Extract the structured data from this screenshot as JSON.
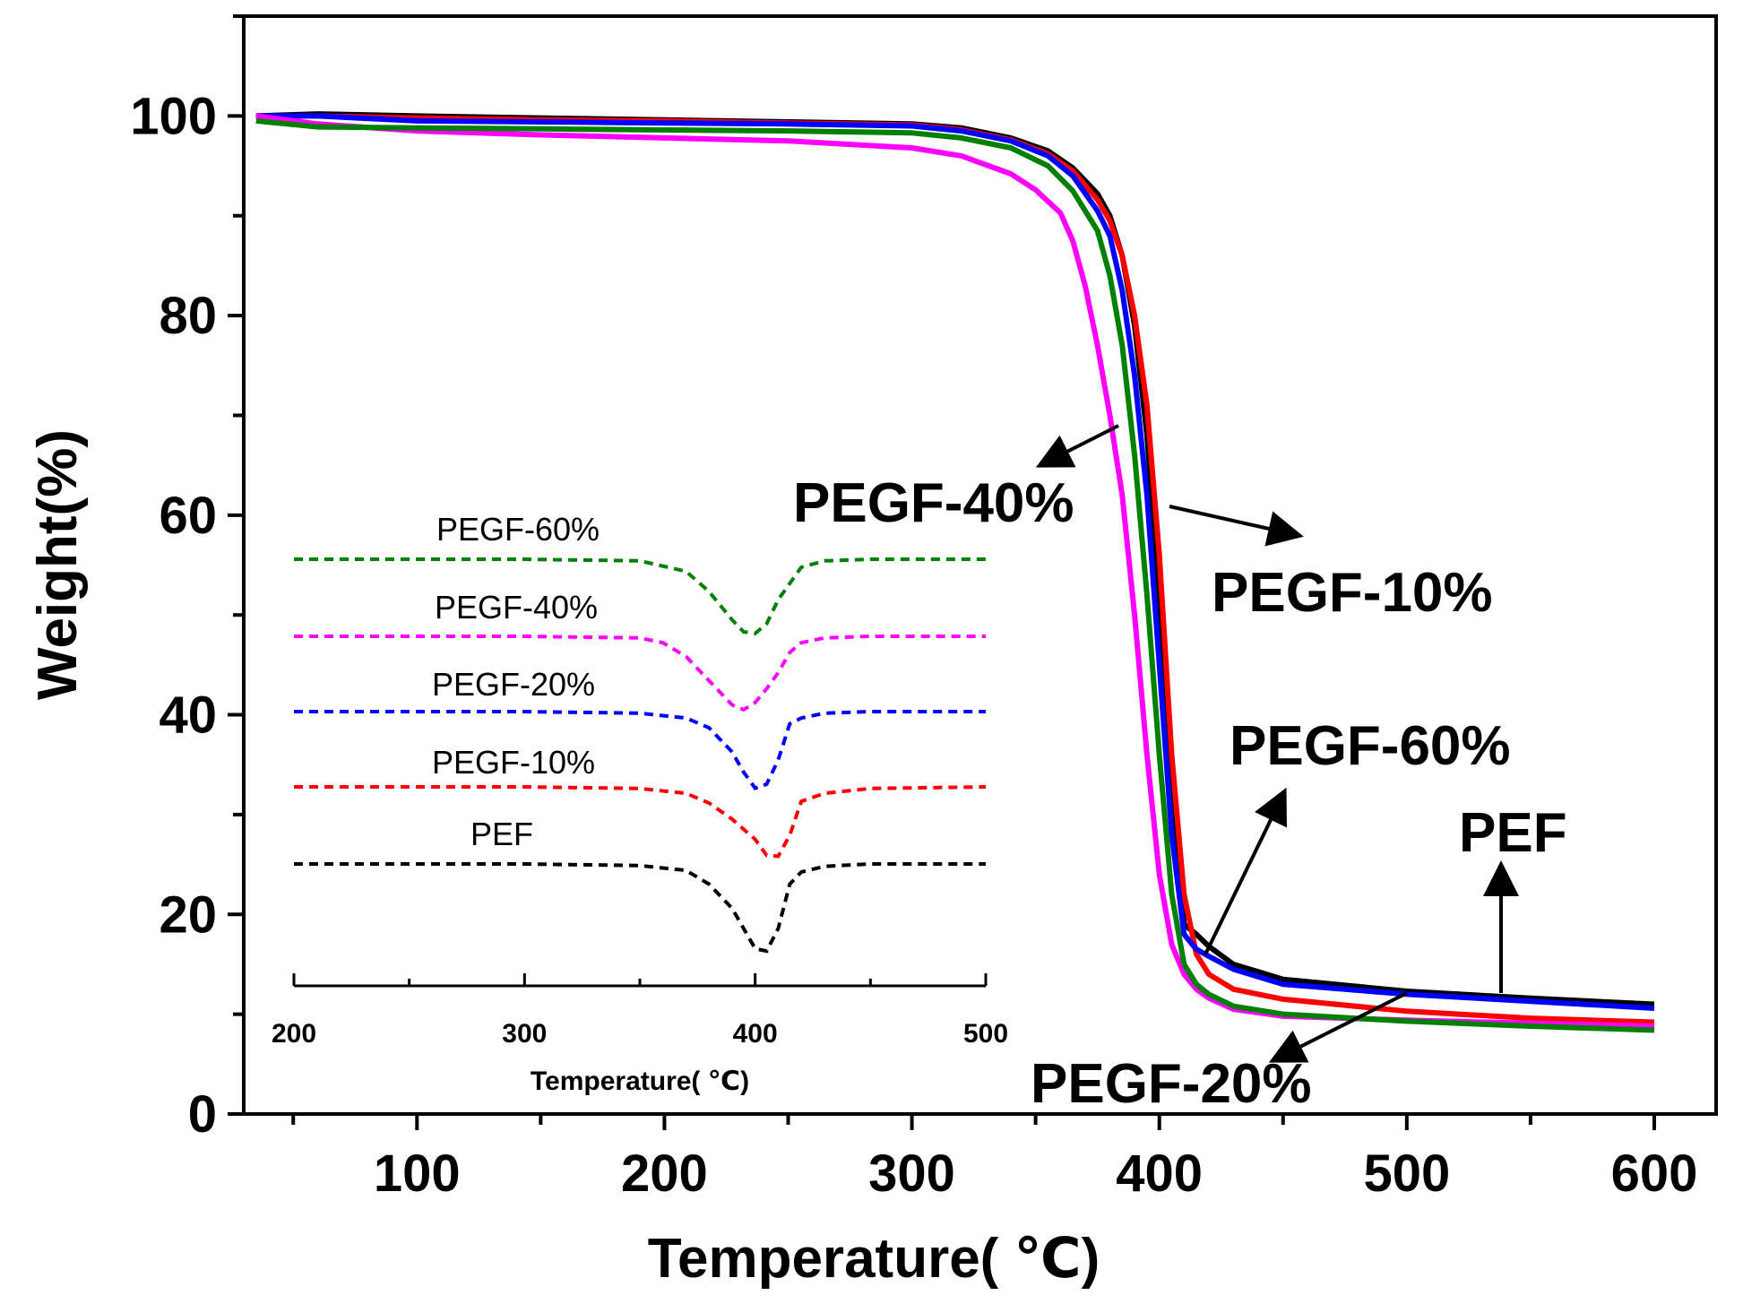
{
  "chart_data": [
    {
      "type": "line",
      "title": "",
      "xlabel": "Temperature(  ℃)",
      "ylabel": "Weight(%)",
      "xlim": [
        30,
        625
      ],
      "ylim": [
        0,
        110
      ],
      "xticks": [
        100,
        200,
        300,
        400,
        500,
        600
      ],
      "yticks": [
        0,
        20,
        40,
        60,
        80,
        100
      ],
      "grid": false,
      "series": [
        {
          "name": "PEF",
          "color": "#000000",
          "x": [
            35,
            60,
            100,
            150,
            200,
            250,
            300,
            320,
            340,
            355,
            365,
            375,
            380,
            385,
            390,
            395,
            400,
            405,
            410,
            415,
            420,
            430,
            450,
            500,
            550,
            600
          ],
          "y": [
            100,
            100.2,
            100,
            99.8,
            99.6,
            99.4,
            99.2,
            98.8,
            97.8,
            96.5,
            94.8,
            92.2,
            90,
            86,
            79,
            68,
            52,
            33,
            19,
            18,
            16.8,
            15,
            13.5,
            12.3,
            11.6,
            11
          ]
        },
        {
          "name": "PEGF-10%",
          "color": "#ff0000",
          "x": [
            35,
            60,
            100,
            150,
            200,
            250,
            300,
            320,
            340,
            355,
            365,
            375,
            380,
            385,
            390,
            395,
            400,
            405,
            410,
            415,
            420,
            430,
            450,
            500,
            550,
            600
          ],
          "y": [
            100,
            100,
            99.8,
            99.6,
            99.5,
            99.3,
            99.1,
            98.6,
            97.6,
            96.2,
            94.5,
            91.6,
            89.5,
            86,
            80,
            71,
            56,
            36,
            22,
            16,
            14,
            12.5,
            11.5,
            10.3,
            9.6,
            9.2
          ]
        },
        {
          "name": "PEGF-20%",
          "color": "#0000ff",
          "x": [
            35,
            60,
            100,
            150,
            200,
            250,
            300,
            320,
            340,
            355,
            365,
            375,
            380,
            385,
            390,
            395,
            400,
            405,
            410,
            415,
            420,
            430,
            450,
            500,
            550,
            600
          ],
          "y": [
            100,
            100,
            99.5,
            99.4,
            99.3,
            99.2,
            99,
            98.5,
            97.5,
            96,
            94,
            90.5,
            88,
            82.5,
            74,
            62,
            45,
            28,
            18,
            16.5,
            15.8,
            14.5,
            13,
            12,
            11.3,
            10.6
          ]
        },
        {
          "name": "PEGF-40%",
          "color": "#ff00ff",
          "x": [
            35,
            60,
            100,
            150,
            200,
            250,
            300,
            320,
            340,
            350,
            360,
            365,
            370,
            375,
            380,
            385,
            390,
            395,
            400,
            405,
            410,
            415,
            420,
            430,
            450,
            500,
            550,
            600
          ],
          "y": [
            100,
            99.2,
            98.5,
            98.1,
            97.8,
            97.5,
            96.8,
            96,
            94.2,
            92.6,
            90.3,
            87.5,
            83,
            77,
            70,
            62,
            50,
            36,
            24,
            17,
            14,
            12.5,
            11.6,
            10.5,
            9.8,
            9.4,
            9.1,
            8.8
          ]
        },
        {
          "name": "PEGF-60%",
          "color": "#008000",
          "x": [
            35,
            60,
            100,
            150,
            200,
            250,
            300,
            320,
            340,
            355,
            365,
            375,
            380,
            385,
            390,
            395,
            400,
            405,
            410,
            415,
            420,
            430,
            450,
            500,
            550,
            600
          ],
          "y": [
            99.5,
            98.9,
            98.8,
            98.7,
            98.6,
            98.5,
            98.3,
            97.8,
            96.8,
            95,
            92.5,
            88.5,
            84,
            77,
            66,
            52,
            36,
            22,
            15,
            13,
            12,
            10.8,
            10,
            9.3,
            8.8,
            8.4
          ]
        }
      ],
      "annotations": [
        {
          "text": "PEGF-40%"
        },
        {
          "text": "PEGF-10%"
        },
        {
          "text": "PEGF-60%"
        },
        {
          "text": "PEF"
        },
        {
          "text": "PEGF-20%"
        }
      ]
    },
    {
      "type": "line",
      "title": "",
      "xlabel": "Temperature(  ℃)",
      "ylabel": "",
      "xlim": [
        200,
        500
      ],
      "xticks": [
        200,
        300,
        400,
        500
      ],
      "xtick_labels": [
        "200",
        "300",
        "400",
        "500"
      ],
      "line_style": "dashed",
      "y_axis_visible": false,
      "series": [
        {
          "name": "PEGF-60%",
          "color": "#008000",
          "x": [
            200,
            300,
            350,
            370,
            380,
            390,
            395,
            400,
            405,
            410,
            415,
            420,
            430,
            450,
            500
          ],
          "y": [
            0,
            0,
            -0.2,
            -1.5,
            -4,
            -7.5,
            -9,
            -9.2,
            -8,
            -5,
            -3,
            -1,
            -0.2,
            0,
            0
          ]
        },
        {
          "name": "PEGF-40%",
          "color": "#ff00ff",
          "x": [
            200,
            300,
            350,
            360,
            370,
            380,
            390,
            395,
            400,
            405,
            410,
            415,
            420,
            430,
            450,
            500
          ],
          "y": [
            0,
            0,
            -0.2,
            -0.8,
            -2.5,
            -5.5,
            -8.5,
            -9.1,
            -8.2,
            -6.5,
            -4.5,
            -2,
            -0.8,
            -0.2,
            0,
            0
          ]
        },
        {
          "name": "PEGF-20%",
          "color": "#0000ff",
          "x": [
            200,
            300,
            350,
            370,
            380,
            390,
            395,
            400,
            405,
            410,
            415,
            420,
            430,
            450,
            500
          ],
          "y": [
            0,
            0,
            -0.2,
            -0.8,
            -2,
            -5,
            -7.5,
            -9.5,
            -9,
            -6,
            -1.5,
            -0.8,
            -0.2,
            0,
            0
          ]
        },
        {
          "name": "PEGF-10%",
          "color": "#ff0000",
          "x": [
            200,
            300,
            350,
            370,
            380,
            390,
            400,
            405,
            410,
            415,
            420,
            430,
            450,
            500
          ],
          "y": [
            0,
            0,
            -0.2,
            -0.8,
            -2,
            -4,
            -6.5,
            -8.5,
            -8.6,
            -6,
            -1.8,
            -0.8,
            -0.2,
            0
          ]
        },
        {
          "name": "PEF",
          "color": "#000000",
          "x": [
            200,
            300,
            350,
            370,
            380,
            390,
            395,
            400,
            405,
            410,
            415,
            420,
            430,
            450,
            500
          ],
          "y": [
            0,
            0,
            -0.2,
            -0.8,
            -2.5,
            -5.5,
            -8,
            -10.5,
            -10.8,
            -8,
            -2.5,
            -1,
            -0.3,
            0,
            0
          ]
        }
      ],
      "labels": [
        "PEGF-60%",
        "PEGF-40%",
        "PEGF-20%",
        "PEGF-10%",
        "PEF"
      ]
    }
  ]
}
